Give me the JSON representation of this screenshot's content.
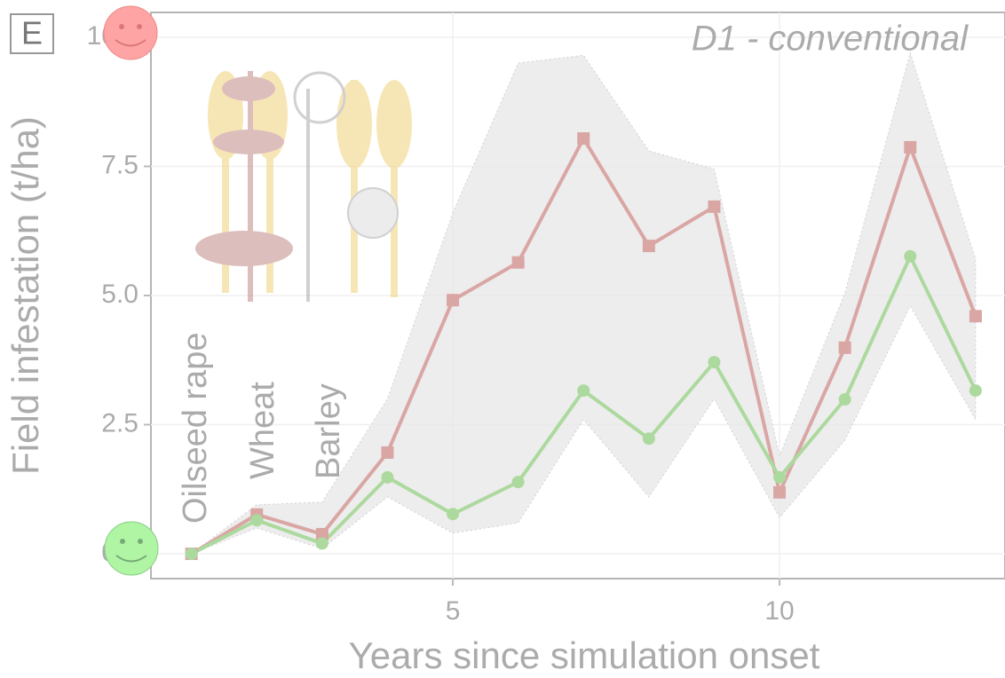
{
  "chart_data": {
    "type": "line",
    "panel_label": "E",
    "annotation": "D1 - conventional",
    "xlabel": "Years since simulation onset",
    "ylabel": "Field infestation (t/ha)",
    "crop_labels": [
      "Oilseed rape",
      "Wheat",
      "Barley"
    ],
    "x": [
      1,
      2,
      3,
      4,
      5,
      6,
      7,
      8,
      9,
      10,
      11,
      12,
      13
    ],
    "band": {
      "color": "#e6e6e6",
      "upper": [
        0,
        0.95,
        1.0,
        3.0,
        6.6,
        9.5,
        9.65,
        7.8,
        7.45,
        1.9,
        5.05,
        9.7,
        5.7
      ],
      "lower": [
        0,
        0.5,
        0.1,
        1.1,
        0.4,
        0.6,
        2.6,
        1.1,
        3.0,
        0.7,
        2.2,
        4.8,
        2.6
      ]
    },
    "series": [
      {
        "color": "#d9a6a4",
        "marker": "square",
        "values": [
          0,
          0.76,
          0.38,
          1.96,
          4.91,
          5.64,
          8.04,
          5.96,
          6.72,
          1.19,
          3.99,
          7.87,
          4.6
        ]
      },
      {
        "color": "#acd99e",
        "marker": "circle",
        "values": [
          0,
          0.65,
          0.2,
          1.48,
          0.77,
          1.39,
          3.16,
          2.23,
          3.71,
          1.48,
          2.99,
          5.76,
          3.16
        ]
      }
    ],
    "xlim": [
      0.38,
      13.45
    ],
    "ylim": [
      -0.48,
      10.48
    ],
    "xticks": [
      5,
      10
    ],
    "yticks": [
      {
        "value": 0,
        "label": "0.0"
      },
      2.5,
      {
        "value": 5,
        "label": "5.0"
      },
      7.5,
      {
        "value": 10,
        "label": "10.0"
      }
    ],
    "grid": true
  }
}
